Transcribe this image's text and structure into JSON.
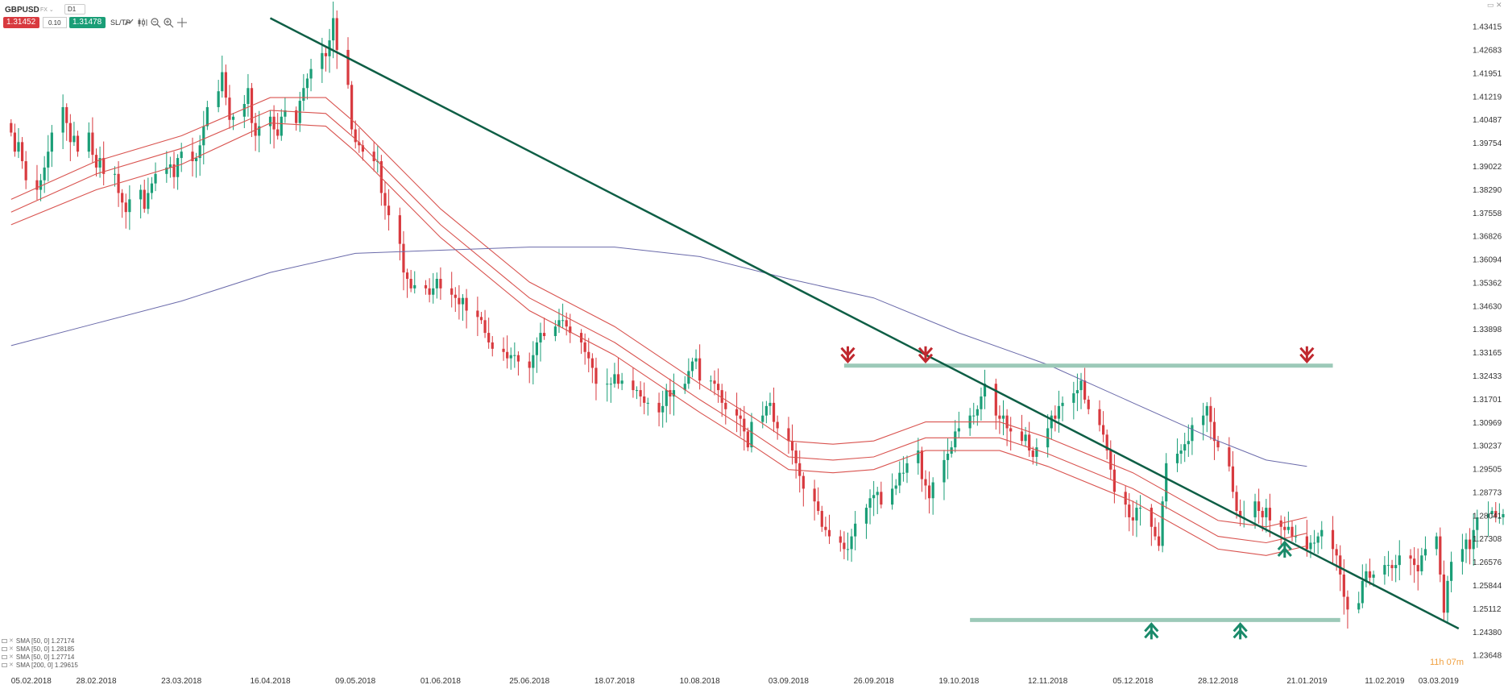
{
  "toolbar": {
    "symbol": "GBPUSD",
    "market": "FX",
    "timeframe": "D1",
    "sell_price": "1.31452",
    "spread": "0.10",
    "buy_price": "1.31478",
    "sltp_label": "SL/TP",
    "icons": [
      "line-chart-icon",
      "candlestick-icon",
      "zoom-out-icon",
      "zoom-in-icon",
      "crosshair-icon"
    ]
  },
  "window": {
    "controls": "▭ ✕"
  },
  "timer": "11h 07m",
  "legend": [
    "SMA [50, 0] 1.27174",
    "SMA [50, 0] 1.28185",
    "SMA [50, 0] 1.27714",
    "SMA [200, 0] 1.29615"
  ],
  "colors": {
    "up_candle": "#1a9e77",
    "down_candle": "#d83a3f",
    "envelope": "#d9534f",
    "sma200": "#6a6aaa",
    "trendline": "#0e5e45",
    "level": "#9cc9b8",
    "arrow_down": "#c0282f",
    "arrow_up": "#1a8a6a"
  },
  "chart_data": {
    "type": "line",
    "title": "",
    "xlabel": "",
    "ylabel": "",
    "x_tick_labels": [
      "05.02.2018",
      "28.02.2018",
      "23.03.2018",
      "16.04.2018",
      "09.05.2018",
      "01.06.2018",
      "25.06.2018",
      "18.07.2018",
      "10.08.2018",
      "03.09.2018",
      "26.09.2018",
      "19.10.2018",
      "12.11.2018",
      "05.12.2018",
      "28.12.2018",
      "21.01.2019",
      "11.02.2019",
      "03.03.2019"
    ],
    "y_tick_labels": [
      "1.43415",
      "1.42683",
      "1.41951",
      "1.41219",
      "1.40487",
      "1.39754",
      "1.39022",
      "1.38290",
      "1.37558",
      "1.36826",
      "1.36094",
      "1.35362",
      "1.34630",
      "1.33898",
      "1.33165",
      "1.32433",
      "1.31701",
      "1.30969",
      "1.30237",
      "1.29505",
      "1.28773",
      "1.28041",
      "1.27308",
      "1.26576",
      "1.25844",
      "1.25112",
      "1.24380",
      "1.23648"
    ],
    "ylim": [
      1.2336,
      1.4356
    ],
    "x_range": [
      "02.02.2018",
      "05.03.2019"
    ],
    "grid": false,
    "candle_closes": [
      1.401,
      1.395,
      1.398,
      1.392,
      1.386,
      1.383,
      1.386,
      1.39,
      1.395,
      1.401,
      1.409,
      1.404,
      1.398,
      1.4,
      1.395,
      1.401,
      1.394,
      1.39,
      1.393,
      1.388,
      1.388,
      1.382,
      1.379,
      1.376,
      1.38,
      1.383,
      1.377,
      1.382,
      1.385,
      1.388,
      1.39,
      1.391,
      1.387,
      1.393,
      1.395,
      1.392,
      1.393,
      1.397,
      1.403,
      1.409,
      1.414,
      1.42,
      1.412,
      1.405,
      1.406,
      1.41,
      1.415,
      1.404,
      1.4,
      1.403,
      1.406,
      1.402,
      1.4,
      1.406,
      1.408,
      1.404,
      1.411,
      1.415,
      1.418,
      1.421,
      1.426,
      1.425,
      1.43,
      1.437,
      1.427,
      1.416,
      1.402,
      1.398,
      1.397,
      1.395,
      1.392,
      1.392,
      1.382,
      1.378,
      1.375,
      1.366,
      1.357,
      1.355,
      1.352,
      1.353,
      1.352,
      1.35,
      1.352,
      1.355,
      1.352,
      1.35,
      1.349,
      1.347,
      1.349,
      1.345,
      1.343,
      1.342,
      1.338,
      1.335,
      1.333,
      1.332,
      1.33,
      1.331,
      1.331,
      1.329,
      1.327,
      1.331,
      1.335,
      1.338,
      1.337,
      1.34,
      1.342,
      1.342,
      1.34,
      1.338,
      1.335,
      1.332,
      1.33,
      1.327,
      1.322,
      1.322,
      1.322,
      1.325,
      1.322,
      1.323,
      1.32,
      1.32,
      1.318,
      1.316,
      1.316,
      1.313,
      1.315,
      1.32,
      1.318,
      1.32,
      1.322,
      1.326,
      1.329,
      1.33,
      1.323,
      1.323,
      1.322,
      1.32,
      1.316,
      1.314,
      1.312,
      1.311,
      1.307,
      1.302,
      1.31,
      1.312,
      1.315,
      1.316,
      1.31,
      1.308,
      1.304,
      1.301,
      1.297,
      1.293,
      1.289,
      1.285,
      1.282,
      1.277,
      1.276,
      1.274,
      1.272,
      1.27,
      1.27,
      1.274,
      1.278,
      1.283,
      1.286,
      1.287,
      1.288,
      1.284,
      1.289,
      1.29,
      1.294,
      1.294,
      1.297,
      1.301,
      1.292,
      1.29,
      1.286,
      1.291,
      1.298,
      1.3,
      1.302,
      1.307,
      1.308,
      1.312,
      1.312,
      1.314,
      1.318,
      1.322,
      1.312,
      1.311,
      1.312,
      1.308,
      1.307,
      1.304,
      1.306,
      1.301,
      1.299,
      1.302,
      1.308,
      1.312,
      1.311,
      1.315,
      1.316,
      1.319,
      1.32,
      1.323,
      1.317,
      1.314,
      1.309,
      1.306,
      1.301,
      1.295,
      1.288,
      1.284,
      1.28,
      1.279,
      1.283,
      1.283,
      1.277,
      1.274,
      1.271,
      1.285,
      1.297,
      1.3,
      1.301,
      1.303,
      1.304,
      1.309,
      1.312,
      1.315,
      1.31,
      1.304,
      1.302,
      1.296,
      1.288,
      1.282,
      1.28,
      1.28,
      1.285,
      1.282,
      1.28,
      1.283,
      1.279,
      1.277,
      1.276,
      1.277,
      1.274,
      1.274,
      1.27,
      1.272,
      1.272,
      1.274,
      1.276,
      1.27,
      1.268,
      1.262,
      1.255,
      1.251,
      1.253,
      1.26,
      1.263,
      1.261,
      1.262,
      1.265,
      1.265,
      1.264,
      1.265,
      1.268,
      1.267,
      1.265,
      1.263,
      1.268,
      1.27,
      1.274,
      1.262,
      1.25,
      1.26,
      1.266,
      1.27,
      1.273,
      1.27,
      1.276,
      1.28,
      1.281,
      1.282,
      1.28,
      1.28,
      1.281,
      1.283,
      1.286,
      1.284,
      1.287,
      1.295,
      1.296,
      1.292,
      1.294,
      1.302,
      1.31,
      1.318,
      1.317,
      1.314,
      1.314
    ],
    "series": [
      {
        "name": "SMA [50, 0] 1.27174",
        "color": "#d9534f",
        "points": [
          [
            "05.02.2018",
            1.372
          ],
          [
            "28.02.2018",
            1.383
          ],
          [
            "23.03.2018",
            1.391
          ],
          [
            "16.04.2018",
            1.404
          ],
          [
            "01.05.2018",
            1.403
          ],
          [
            "09.05.2018",
            1.395
          ],
          [
            "01.06.2018",
            1.368
          ],
          [
            "25.06.2018",
            1.345
          ],
          [
            "18.07.2018",
            1.331
          ],
          [
            "10.08.2018",
            1.313
          ],
          [
            "25.08.2018",
            1.302
          ],
          [
            "03.09.2018",
            1.295
          ],
          [
            "15.09.2018",
            1.294
          ],
          [
            "26.09.2018",
            1.295
          ],
          [
            "10.10.2018",
            1.301
          ],
          [
            "19.10.2018",
            1.301
          ],
          [
            "30.10.2018",
            1.301
          ],
          [
            "12.11.2018",
            1.296
          ],
          [
            "05.12.2018",
            1.285
          ],
          [
            "28.12.2018",
            1.27
          ],
          [
            "10.01.2019",
            1.268
          ],
          [
            "21.01.2019",
            1.271
          ]
        ]
      },
      {
        "name": "SMA [50, 0] 1.28185",
        "color": "#d9534f",
        "points": [
          [
            "05.02.2018",
            1.38
          ],
          [
            "28.02.2018",
            1.392
          ],
          [
            "23.03.2018",
            1.4
          ],
          [
            "16.04.2018",
            1.412
          ],
          [
            "01.05.2018",
            1.412
          ],
          [
            "09.05.2018",
            1.404
          ],
          [
            "01.06.2018",
            1.377
          ],
          [
            "25.06.2018",
            1.354
          ],
          [
            "18.07.2018",
            1.34
          ],
          [
            "10.08.2018",
            1.322
          ],
          [
            "25.08.2018",
            1.311
          ],
          [
            "03.09.2018",
            1.304
          ],
          [
            "15.09.2018",
            1.303
          ],
          [
            "26.09.2018",
            1.304
          ],
          [
            "10.10.2018",
            1.31
          ],
          [
            "19.10.2018",
            1.31
          ],
          [
            "30.10.2018",
            1.31
          ],
          [
            "12.11.2018",
            1.305
          ],
          [
            "05.12.2018",
            1.294
          ],
          [
            "28.12.2018",
            1.279
          ],
          [
            "10.01.2019",
            1.277
          ],
          [
            "21.01.2019",
            1.28
          ]
        ]
      },
      {
        "name": "SMA [50, 0] 1.27714",
        "color": "#d9534f",
        "points": [
          [
            "05.02.2018",
            1.376
          ],
          [
            "28.02.2018",
            1.388
          ],
          [
            "23.03.2018",
            1.396
          ],
          [
            "16.04.2018",
            1.408
          ],
          [
            "01.05.2018",
            1.407
          ],
          [
            "09.05.2018",
            1.399
          ],
          [
            "01.06.2018",
            1.372
          ],
          [
            "25.06.2018",
            1.349
          ],
          [
            "18.07.2018",
            1.335
          ],
          [
            "10.08.2018",
            1.317
          ],
          [
            "25.08.2018",
            1.306
          ],
          [
            "03.09.2018",
            1.299
          ],
          [
            "15.09.2018",
            1.298
          ],
          [
            "26.09.2018",
            1.299
          ],
          [
            "10.10.2018",
            1.305
          ],
          [
            "19.10.2018",
            1.305
          ],
          [
            "30.10.2018",
            1.305
          ],
          [
            "12.11.2018",
            1.3
          ],
          [
            "05.12.2018",
            1.289
          ],
          [
            "28.12.2018",
            1.274
          ],
          [
            "10.01.2019",
            1.272
          ],
          [
            "21.01.2019",
            1.275
          ]
        ]
      },
      {
        "name": "SMA [200, 0] 1.29615",
        "color": "#6a6aaa",
        "points": [
          [
            "05.02.2018",
            1.334
          ],
          [
            "28.02.2018",
            1.341
          ],
          [
            "23.03.2018",
            1.348
          ],
          [
            "16.04.2018",
            1.357
          ],
          [
            "09.05.2018",
            1.363
          ],
          [
            "01.06.2018",
            1.364
          ],
          [
            "25.06.2018",
            1.365
          ],
          [
            "18.07.2018",
            1.365
          ],
          [
            "10.08.2018",
            1.362
          ],
          [
            "03.09.2018",
            1.355
          ],
          [
            "26.09.2018",
            1.349
          ],
          [
            "19.10.2018",
            1.338
          ],
          [
            "12.11.2018",
            1.328
          ],
          [
            "05.12.2018",
            1.316
          ],
          [
            "28.12.2018",
            1.304
          ],
          [
            "10.01.2019",
            1.298
          ],
          [
            "21.01.2019",
            1.296
          ]
        ]
      }
    ],
    "annotations": {
      "trendline": [
        [
          "16.04.2018",
          1.437
        ],
        [
          "03.03.2019",
          1.245
        ]
      ],
      "horizontal_levels": [
        {
          "y": 1.3277,
          "from": "18.09.2018",
          "to": "28.01.2019"
        },
        {
          "y": 1.2477,
          "from": "22.10.2018",
          "to": "30.01.2019"
        }
      ],
      "arrows": [
        {
          "direction": "down",
          "x": "19.09.2018",
          "y": 1.3277
        },
        {
          "direction": "down",
          "x": "10.10.2018",
          "y": 1.3277
        },
        {
          "direction": "down",
          "x": "21.01.2019",
          "y": 1.3277
        },
        {
          "direction": "up",
          "x": "10.12.2018",
          "y": 1.2477
        },
        {
          "direction": "up",
          "x": "03.01.2019",
          "y": 1.2477
        },
        {
          "direction": "up",
          "x": "15.01.2019",
          "y": 1.2734
        }
      ]
    }
  }
}
